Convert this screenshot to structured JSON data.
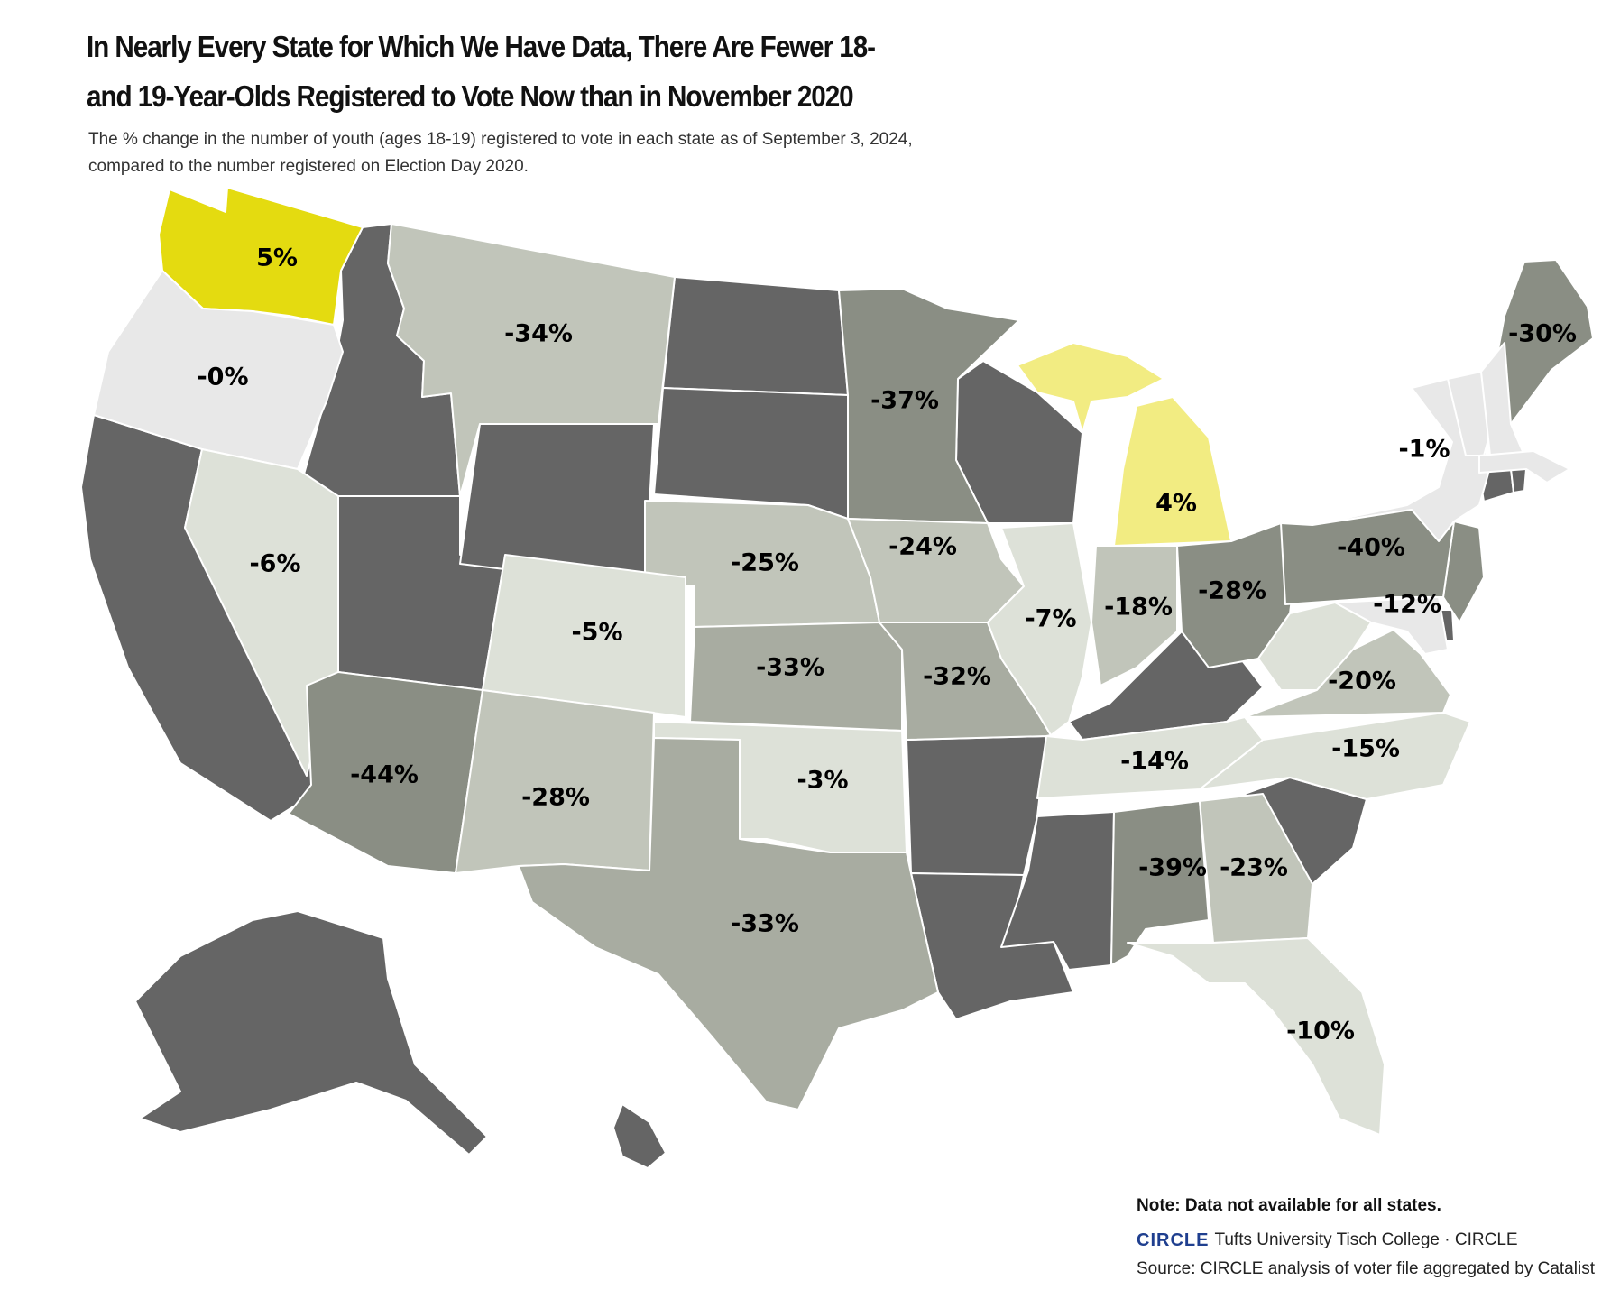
{
  "title": "In Nearly Every State for Which We Have Data, There Are Fewer 18- and 19-Year-Olds Registered to Vote Now than in November 2020",
  "subtitle": "The % change in the number of youth (ages 18-19) registered to vote in each state as of September 3, 2024, compared to the number registered on Election Day 2020.",
  "note": "Note: Data not available for all states.",
  "logo": "CIRCLE",
  "org": "Tufts University Tisch College · CIRCLE",
  "source": "Source: CIRCLE analysis of voter file aggregated by Catalist",
  "colors": {
    "no_data": "#656565",
    "positive_strong": "#e4db10",
    "positive_light": "#f2ec82",
    "near_zero": "#e8e8e8",
    "small_negative": "#dde1d8",
    "moderate_negative": "#c1c5ba",
    "large_negative": "#a8aca1",
    "largest_negative": "#8a8e84"
  },
  "chart_data": {
    "type": "choropleth",
    "unit": "% change",
    "states": [
      {
        "state": "WA",
        "label": "5%",
        "value": 5
      },
      {
        "state": "OR",
        "label": "-0%",
        "value": 0
      },
      {
        "state": "MT",
        "label": "-34%",
        "value": -34
      },
      {
        "state": "MN",
        "label": "-37%",
        "value": -37
      },
      {
        "state": "MI",
        "label": "4%",
        "value": 4
      },
      {
        "state": "ME",
        "label": "-30%",
        "value": -30
      },
      {
        "state": "NY",
        "label": "-1%",
        "value": -1
      },
      {
        "state": "NV",
        "label": "-6%",
        "value": -6
      },
      {
        "state": "NE",
        "label": "-25%",
        "value": -25
      },
      {
        "state": "IA",
        "label": "-24%",
        "value": -24
      },
      {
        "state": "CO",
        "label": "-5%",
        "value": -5
      },
      {
        "state": "KS",
        "label": "-33%",
        "value": -33
      },
      {
        "state": "MO",
        "label": "-32%",
        "value": -32
      },
      {
        "state": "IL",
        "label": "-7%",
        "value": -7
      },
      {
        "state": "IN",
        "label": "-18%",
        "value": -18
      },
      {
        "state": "OH",
        "label": "-28%",
        "value": -28
      },
      {
        "state": "PA",
        "label": "-40%",
        "value": -40
      },
      {
        "state": "MD",
        "label": "-12%",
        "value": -12
      },
      {
        "state": "VA",
        "label": "-20%",
        "value": -20
      },
      {
        "state": "NC",
        "label": "-15%",
        "value": -15
      },
      {
        "state": "TN",
        "label": "-14%",
        "value": -14
      },
      {
        "state": "AZ",
        "label": "-44%",
        "value": -44
      },
      {
        "state": "NM",
        "label": "-28%",
        "value": -28
      },
      {
        "state": "OK",
        "label": "-3%",
        "value": -3
      },
      {
        "state": "TX",
        "label": "-33%",
        "value": -33
      },
      {
        "state": "AL",
        "label": "-39%",
        "value": -39
      },
      {
        "state": "GA",
        "label": "-23%",
        "value": -23
      },
      {
        "state": "FL",
        "label": "-10%",
        "value": -10
      }
    ],
    "no_data_states": [
      "ID",
      "CA",
      "UT",
      "WY",
      "ND",
      "SD",
      "WI",
      "AR",
      "LA",
      "MS",
      "KY",
      "SC",
      "AK",
      "HI",
      "CT",
      "RI",
      "DE"
    ]
  }
}
